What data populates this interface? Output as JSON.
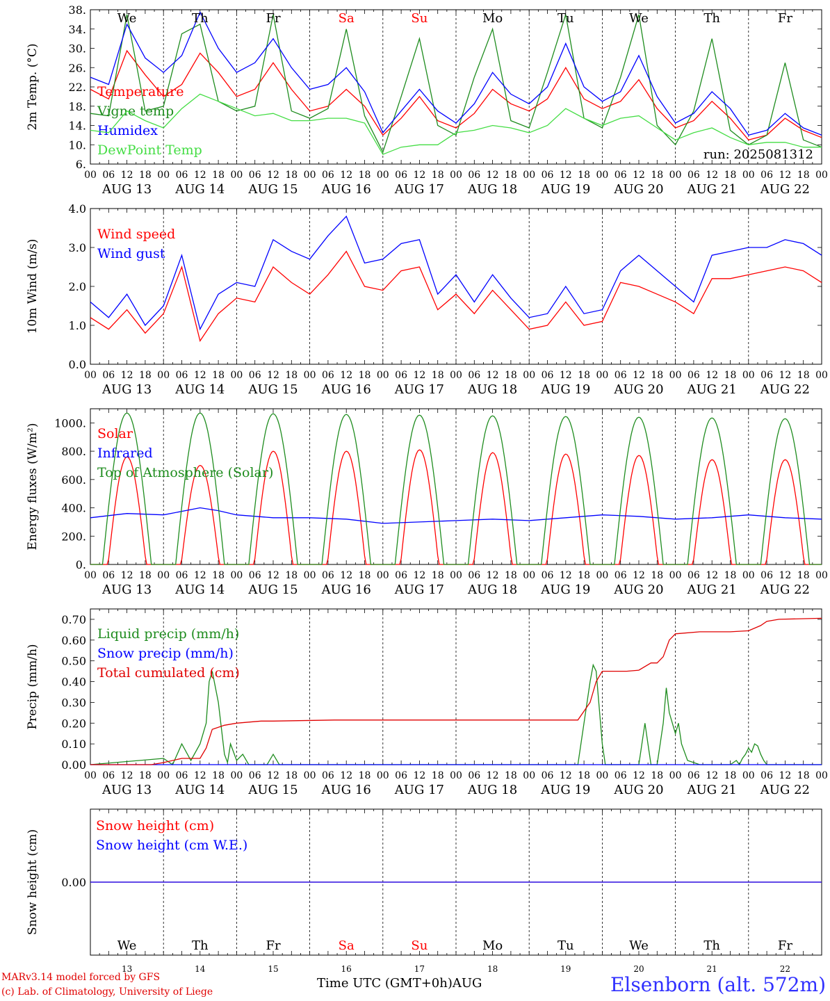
{
  "chart_data": [
    {
      "type": "line",
      "ylabel": "2m Temp. (°C)",
      "ylim": [
        6,
        38
      ],
      "yticks": [
        "6.",
        "10.",
        "14.",
        "18.",
        "22.",
        "26.",
        "30.",
        "34.",
        "38."
      ],
      "x_hours": [
        0,
        6,
        12,
        18,
        24,
        30,
        36,
        42,
        48,
        54,
        60,
        66,
        72,
        78,
        84,
        90,
        96,
        102,
        108,
        114,
        120,
        126,
        132,
        138,
        144,
        150,
        156,
        162,
        168,
        174,
        180,
        186,
        192,
        198,
        204,
        210,
        216,
        222,
        228,
        234,
        240
      ],
      "series": [
        {
          "name": "Temperature",
          "color": "#ff0000",
          "values": [
            21.5,
            19.5,
            29.5,
            24.5,
            20.0,
            22.5,
            29.0,
            25.0,
            20.0,
            21.5,
            27.0,
            21.5,
            17.0,
            18.0,
            21.5,
            18.0,
            12.0,
            15.5,
            20.0,
            15.0,
            13.5,
            16.5,
            21.5,
            18.5,
            17.0,
            19.5,
            26.0,
            19.5,
            17.5,
            19.0,
            23.5,
            17.5,
            13.5,
            15.0,
            19.0,
            15.5,
            11.0,
            12.0,
            15.5,
            13.0,
            11.5
          ]
        },
        {
          "name": "Vigne temp",
          "color": "#1e8c1e",
          "values": [
            16.5,
            16.0,
            37.0,
            17.0,
            18.0,
            33.0,
            35.0,
            19.0,
            17.0,
            18.0,
            37.0,
            17.0,
            15.5,
            17.5,
            34.0,
            16.0,
            8.5,
            20.0,
            32.0,
            14.0,
            12.0,
            24.0,
            34.0,
            15.0,
            13.5,
            25.0,
            37.0,
            15.5,
            13.5,
            24.0,
            37.0,
            14.0,
            10.0,
            17.0,
            32.0,
            13.0,
            10.0,
            12.0,
            27.0,
            11.0,
            9.5
          ]
        },
        {
          "name": "Humidex",
          "color": "#0000ff",
          "values": [
            24.0,
            22.5,
            35.0,
            28.0,
            25.0,
            28.5,
            37.5,
            30.0,
            25.0,
            27.0,
            32.0,
            26.0,
            21.5,
            22.5,
            26.0,
            21.0,
            12.5,
            17.0,
            21.5,
            17.0,
            14.5,
            18.5,
            25.0,
            20.5,
            18.5,
            22.0,
            31.0,
            22.0,
            19.0,
            21.0,
            28.5,
            20.0,
            14.5,
            16.5,
            21.0,
            17.5,
            12.0,
            13.0,
            16.5,
            13.5,
            12.0
          ]
        },
        {
          "name": "DewPoint Temp",
          "color": "#44dd44",
          "values": [
            13.0,
            12.5,
            17.0,
            15.0,
            13.5,
            17.5,
            20.5,
            19.0,
            17.5,
            16.0,
            16.5,
            15.0,
            15.0,
            15.5,
            15.5,
            14.5,
            8.0,
            9.5,
            10.0,
            10.0,
            12.5,
            13.0,
            14.0,
            13.5,
            12.5,
            14.0,
            17.5,
            15.5,
            14.0,
            15.5,
            16.0,
            13.5,
            11.0,
            12.5,
            13.5,
            11.5,
            10.0,
            10.5,
            10.5,
            9.5,
            9.5
          ]
        }
      ],
      "annotation": "run: 2025081312"
    },
    {
      "type": "line",
      "ylabel": "10m Wind (m/s)",
      "ylim": [
        0,
        4
      ],
      "yticks": [
        "0.0",
        "1.0",
        "2.0",
        "3.0",
        "4.0"
      ],
      "x_hours": [
        0,
        6,
        12,
        18,
        24,
        30,
        36,
        42,
        48,
        54,
        60,
        66,
        72,
        78,
        84,
        90,
        96,
        102,
        108,
        114,
        120,
        126,
        132,
        138,
        144,
        150,
        156,
        162,
        168,
        174,
        180,
        186,
        192,
        198,
        204,
        210,
        216,
        222,
        228,
        234,
        240
      ],
      "series": [
        {
          "name": "Wind speed",
          "color": "#ff0000",
          "values": [
            1.2,
            0.9,
            1.4,
            0.8,
            1.3,
            2.5,
            0.6,
            1.3,
            1.7,
            1.6,
            2.5,
            2.1,
            1.8,
            2.3,
            2.9,
            2.0,
            1.9,
            2.4,
            2.5,
            1.4,
            1.8,
            1.3,
            1.9,
            1.4,
            0.9,
            1.0,
            1.6,
            1.0,
            1.1,
            2.1,
            2.0,
            1.8,
            1.6,
            1.3,
            2.2,
            2.2,
            2.3,
            2.4,
            2.5,
            2.4,
            2.1
          ]
        },
        {
          "name": "Wind gust",
          "color": "#0000ff",
          "values": [
            1.6,
            1.2,
            1.8,
            1.0,
            1.5,
            2.8,
            0.9,
            1.8,
            2.1,
            2.0,
            3.2,
            2.9,
            2.7,
            3.3,
            3.8,
            2.6,
            2.7,
            3.1,
            3.2,
            1.8,
            2.3,
            1.6,
            2.3,
            1.7,
            1.2,
            1.3,
            2.0,
            1.3,
            1.4,
            2.4,
            2.8,
            2.4,
            2.0,
            1.6,
            2.8,
            2.9,
            3.0,
            3.0,
            3.2,
            3.1,
            2.8
          ]
        }
      ]
    },
    {
      "type": "line",
      "ylabel": "Energy fluxes (W/m²)",
      "ylim": [
        0,
        1100
      ],
      "yticks": [
        "0.",
        "200.",
        "400.",
        "600.",
        "800.",
        "1000."
      ],
      "series": [
        {
          "name": "Solar",
          "color": "#ff0000",
          "daily_peak": [
            760,
            700,
            800,
            800,
            810,
            790,
            780,
            770,
            740,
            740
          ]
        },
        {
          "name": "Infrared",
          "color": "#0000ff",
          "x_hours": [
            0,
            12,
            24,
            36,
            42,
            48,
            60,
            72,
            84,
            96,
            108,
            120,
            132,
            144,
            156,
            168,
            180,
            192,
            204,
            216,
            228,
            240
          ],
          "values": [
            330,
            360,
            350,
            400,
            380,
            350,
            330,
            330,
            320,
            290,
            300,
            310,
            320,
            310,
            330,
            350,
            340,
            320,
            330,
            350,
            330,
            320
          ]
        },
        {
          "name": "Top of Atmosphere (Solar)",
          "color": "#1e8c1e",
          "daily_peak": [
            1070,
            1070,
            1065,
            1060,
            1055,
            1050,
            1045,
            1040,
            1035,
            1030
          ]
        }
      ]
    },
    {
      "type": "line",
      "ylabel": "Precip (mm/h)",
      "ylim": [
        0,
        0.75
      ],
      "yticks": [
        "0.00",
        "0.10",
        "0.20",
        "0.30",
        "0.40",
        "0.50",
        "0.60",
        "0.70"
      ],
      "series": [
        {
          "name": "Liquid precip (mm/h)",
          "color": "#1e8c1e",
          "x_hours": [
            0,
            24,
            27,
            30,
            33,
            36,
            38,
            39,
            40,
            42,
            44,
            45,
            46,
            48,
            50,
            52,
            54,
            58,
            60,
            62,
            64,
            66,
            68,
            70,
            100,
            160,
            162,
            164,
            165,
            166,
            168,
            169,
            170,
            180,
            182,
            183,
            184,
            186,
            188,
            189,
            190,
            192,
            193,
            194,
            196,
            200,
            210,
            212,
            213,
            214,
            215,
            216,
            217,
            218,
            219,
            220,
            221,
            222,
            240
          ],
          "values": [
            0,
            0.03,
            0.0,
            0.1,
            0.02,
            0.1,
            0.2,
            0.4,
            0.45,
            0.3,
            0.05,
            0.01,
            0.1,
            0.02,
            0.05,
            0.0,
            0.0,
            0.0,
            0.05,
            0.0,
            0.0,
            0.0,
            0.0,
            0.0,
            0.0,
            0.0,
            0.2,
            0.4,
            0.48,
            0.45,
            0.1,
            0.0,
            0.0,
            0.0,
            0.2,
            0.1,
            0.0,
            0.0,
            0.2,
            0.37,
            0.25,
            0.15,
            0.2,
            0.1,
            0.02,
            0.0,
            0.0,
            0.02,
            0.0,
            0.03,
            0.05,
            0.08,
            0.06,
            0.1,
            0.09,
            0.05,
            0.02,
            0.0,
            0.0
          ]
        },
        {
          "name": "Snow precip (mm/h)",
          "color": "#0000ff",
          "x_hours": [
            0,
            240
          ],
          "values": [
            0,
            0
          ]
        },
        {
          "name": "Total cumulated (cm)",
          "color": "#e00000",
          "x_hours": [
            0,
            20,
            24,
            30,
            36,
            38,
            40,
            42,
            44,
            48,
            52,
            56,
            60,
            80,
            100,
            160,
            164,
            166,
            168,
            172,
            176,
            180,
            184,
            186,
            188,
            190,
            192,
            200,
            210,
            216,
            220,
            222,
            226,
            240
          ],
          "values": [
            0,
            0,
            0.01,
            0.03,
            0.03,
            0.08,
            0.17,
            0.18,
            0.19,
            0.2,
            0.205,
            0.21,
            0.21,
            0.215,
            0.215,
            0.215,
            0.3,
            0.4,
            0.45,
            0.45,
            0.45,
            0.455,
            0.49,
            0.49,
            0.52,
            0.6,
            0.63,
            0.64,
            0.64,
            0.645,
            0.67,
            0.69,
            0.7,
            0.705
          ]
        }
      ]
    },
    {
      "type": "line",
      "ylabel": "Snow height (cm)",
      "yticks": [
        "0.00"
      ],
      "series": [
        {
          "name": "Snow height (cm)",
          "color": "#ff0000",
          "x_hours": [
            0,
            240
          ],
          "values": [
            0,
            0
          ]
        },
        {
          "name": "Snow height (cm W.E.)",
          "color": "#0000ff",
          "x_hours": [
            0,
            240
          ],
          "values": [
            0,
            0
          ]
        }
      ]
    }
  ],
  "hour_ticks": [
    "00",
    "06",
    "12",
    "18"
  ],
  "date_labels": [
    "AUG 13",
    "AUG 14",
    "AUG 15",
    "AUG 16",
    "AUG 17",
    "AUG 18",
    "AUG 19",
    "AUG 20",
    "AUG 21",
    "AUG 22"
  ],
  "weekdays": [
    "We",
    "Th",
    "Fr",
    "Sa",
    "Su",
    "Mo",
    "Tu",
    "We",
    "Th",
    "Fr"
  ],
  "weekday_colors": [
    "#000000",
    "#000000",
    "#000000",
    "#ff0000",
    "#ff0000",
    "#000000",
    "#000000",
    "#000000",
    "#000000",
    "#000000"
  ],
  "day_numbers": [
    "13",
    "14",
    "15",
    "16",
    "17",
    "18",
    "19",
    "20",
    "21",
    "22"
  ],
  "footer": {
    "credit1": "MARv3.14 model forced by GFS",
    "credit2": "(c) Lab. of Climatology, University of Liege",
    "time_label": "Time UTC (GMT+0h)AUG",
    "station": "Elsenborn (alt. 572m)"
  }
}
